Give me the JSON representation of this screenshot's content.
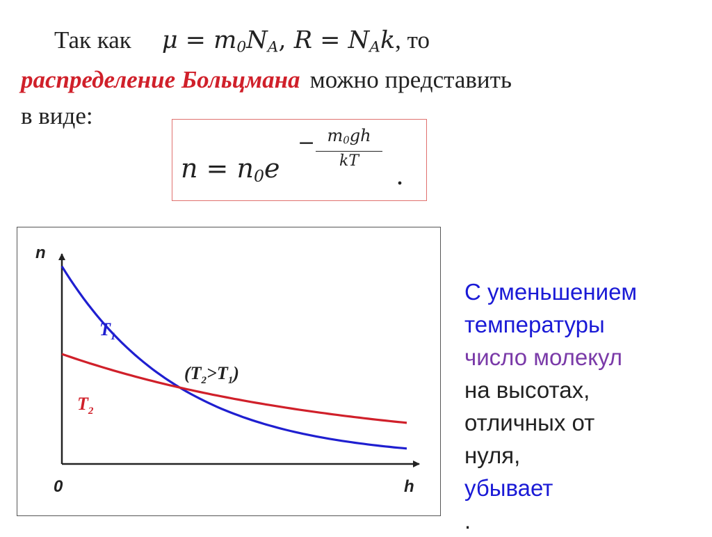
{
  "text": {
    "line1_prefix": "Так как",
    "line1_math": "μ = m",
    "line1_sub0": "0",
    "line1_math_b": "N",
    "line1_subA": "A",
    "line1_comma": ", ",
    "line1_math_c": "R = N",
    "line1_subA2": "A",
    "line1_math_d": "k",
    "line1_suffix": ", то",
    "highlight": "распределение Больцмана",
    "line2_rest": "можно представить",
    "line3": "в виде:"
  },
  "formula": {
    "lhs_a": "n = n",
    "lhs_sub": "0",
    "lhs_e": "e",
    "minus": "−",
    "num_m": "m",
    "num_sub": "0",
    "num_rest": "gh",
    "den": "kT",
    "dot": "."
  },
  "chart_data": {
    "type": "line",
    "x_label": "h",
    "y_label": "n",
    "origin_label": "0",
    "annotation": "(T₂>T₁)",
    "series": [
      {
        "name": "T₁",
        "color": "#1f1fd0",
        "n0": 1.0,
        "decay": 2.9
      },
      {
        "name": "T₂",
        "color": "#d0202a",
        "n0": 0.5,
        "decay": 1.25
      }
    ],
    "x_range": [
      0,
      1
    ],
    "y_range": [
      0,
      1.1
    ],
    "grid": false
  },
  "caption": {
    "l1": "С уменьшением",
    "l2": "температуры",
    "l3": "число молекул",
    "l4": "на высотах,",
    "l5": "отличных от",
    "l6_a": "нуля, ",
    "l6_b": "убывает",
    "l6_c": ".",
    "colors": {
      "blue": "#1a1ad6",
      "purple": "#7a3aa8",
      "dark": "#222222"
    }
  }
}
